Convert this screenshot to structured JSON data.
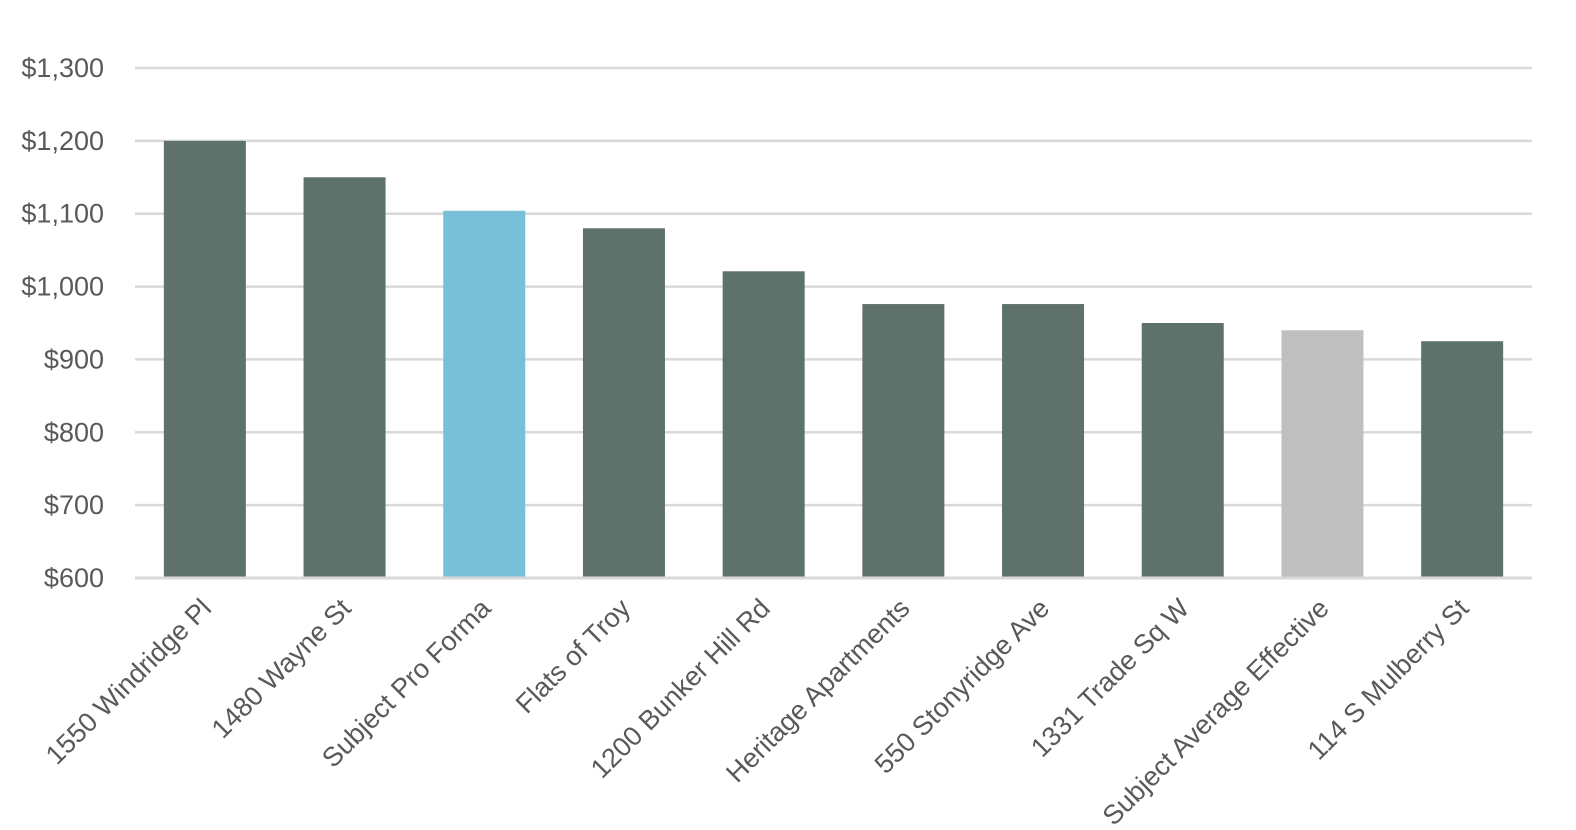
{
  "chart_data": {
    "type": "bar",
    "title": "",
    "xlabel": "",
    "ylabel": "",
    "ylim": [
      600,
      1300
    ],
    "ytick_values": [
      600,
      700,
      800,
      900,
      1000,
      1100,
      1200,
      1300
    ],
    "ytick_labels": [
      "$600",
      "$700",
      "$800",
      "$900",
      "$1,000",
      "$1,100",
      "$1,200",
      "$1,300"
    ],
    "categories": [
      "1550 Windridge Pl",
      "1480 Wayne St",
      "Subject Pro Forma",
      "Flats of Troy",
      "1200 Bunker Hill Rd",
      "Heritage Apartments",
      "550 Stonyridge Ave",
      "1331 Trade Sq W",
      "Subject Average Effective",
      "114 S Mulberry St"
    ],
    "values": [
      1200,
      1150,
      1104,
      1080,
      1021,
      976,
      976,
      950,
      940,
      925
    ],
    "bar_colors": [
      "#5f716b",
      "#5f716b",
      "#78bfd8",
      "#5f716b",
      "#5f716b",
      "#5f716b",
      "#5f716b",
      "#5f716b",
      "#bfbfbf",
      "#5f716b"
    ],
    "grid": true,
    "legend": "none"
  }
}
